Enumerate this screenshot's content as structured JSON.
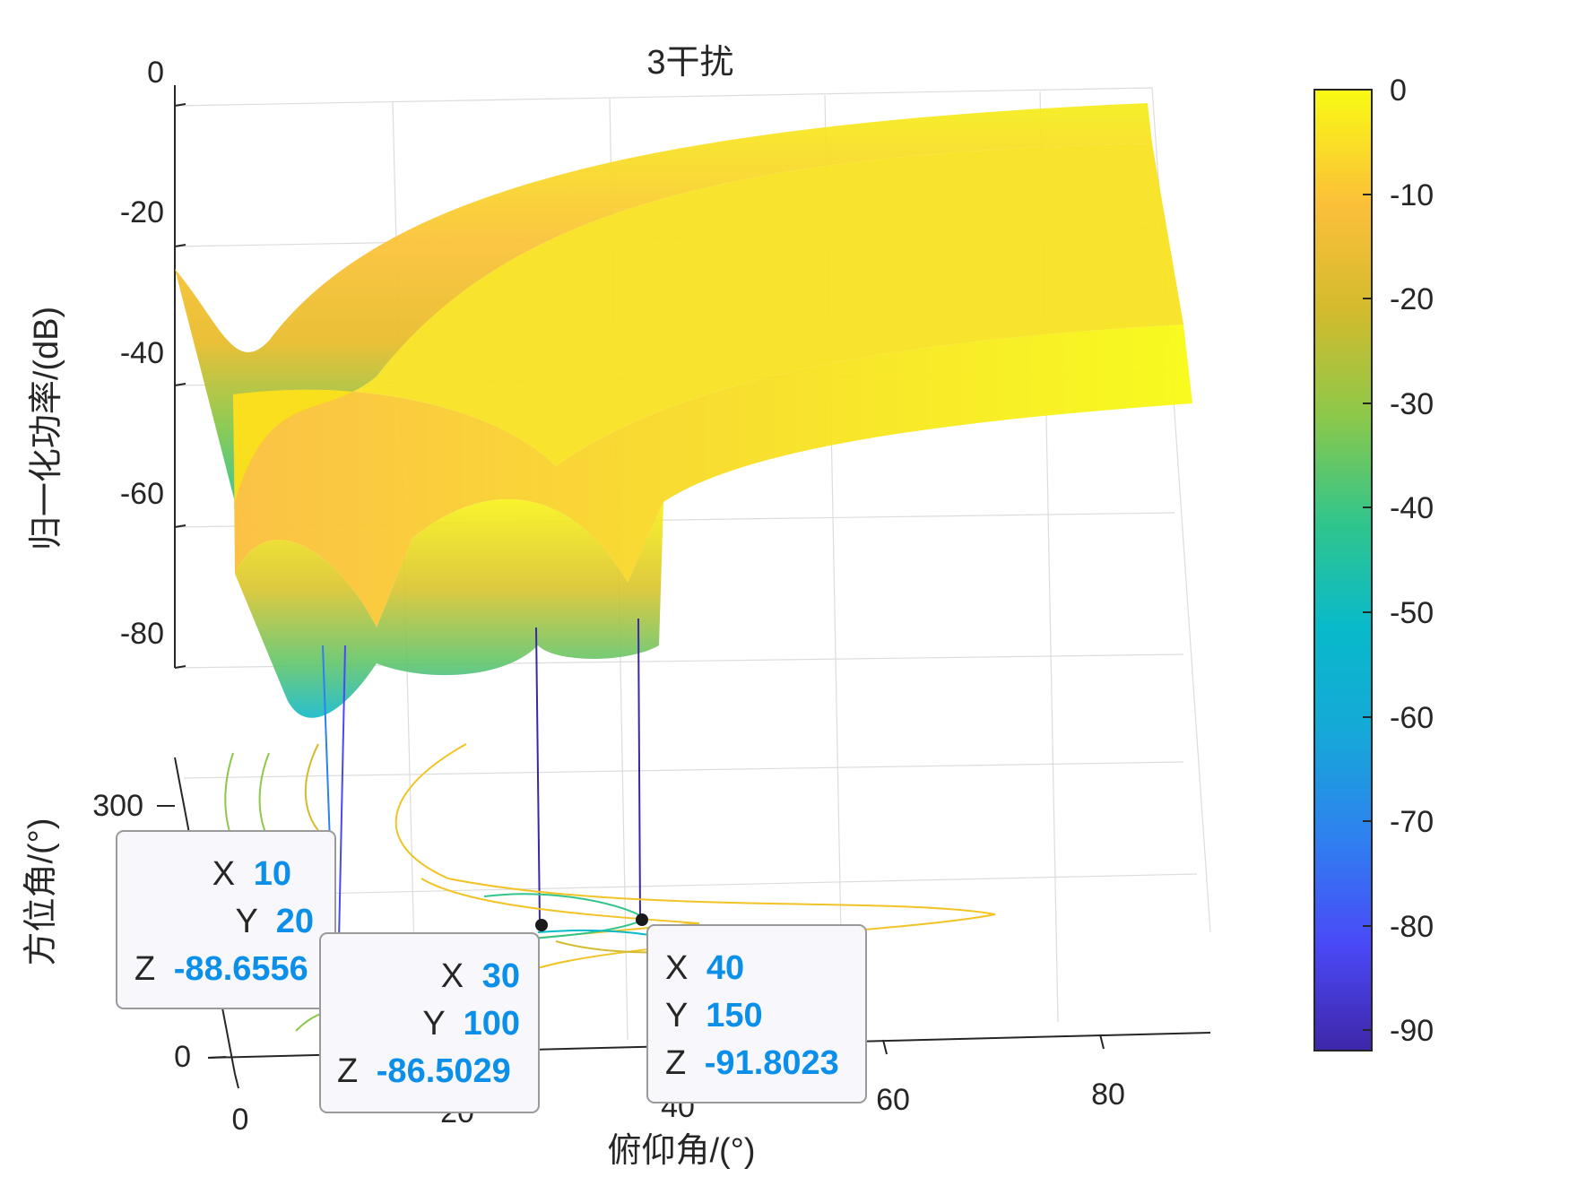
{
  "chart_data": {
    "type": "surface",
    "title": "3干扰",
    "xlabel": "俯仰角/(°)",
    "ylabel": "方位角/(°)",
    "zlabel": "归一化功率/(dB)",
    "x_ticks": [
      "0",
      "20",
      "40",
      "60",
      "80"
    ],
    "y_ticks": [
      "0",
      "300"
    ],
    "z_ticks": [
      "0",
      "-20",
      "-40",
      "-60",
      "-80"
    ],
    "colorbar_ticks": [
      "0",
      "-10",
      "-20",
      "-30",
      "-40",
      "-50",
      "-60",
      "-70",
      "-80",
      "-90"
    ],
    "colorbar_range": [
      -92,
      0
    ],
    "colormap": [
      "#3e26a8",
      "#4a49f7",
      "#2f80f0",
      "#16a8d8",
      "#08baca",
      "#31c58b",
      "#8cc84a",
      "#d3bb2d",
      "#fcbf3a",
      "#f8fa14"
    ],
    "grid": true,
    "nulls": [
      {
        "x": 10,
        "y": 20,
        "z": -88.6556
      },
      {
        "x": 30,
        "y": 100,
        "z": -86.5029
      },
      {
        "x": 40,
        "y": 150,
        "z": -91.8023
      }
    ],
    "datatips": [
      {
        "x_label": "X",
        "x": "10",
        "y_label": "Y",
        "y": "20",
        "z_label": "Z",
        "z": "-88.6556"
      },
      {
        "x_label": "X",
        "x": "30",
        "y_label": "Y",
        "y": "100",
        "z_label": "Z",
        "z": "-86.5029"
      },
      {
        "x_label": "X",
        "x": "40",
        "y_label": "Y",
        "y": "150",
        "z_label": "Z",
        "z": "-91.8023"
      }
    ]
  }
}
